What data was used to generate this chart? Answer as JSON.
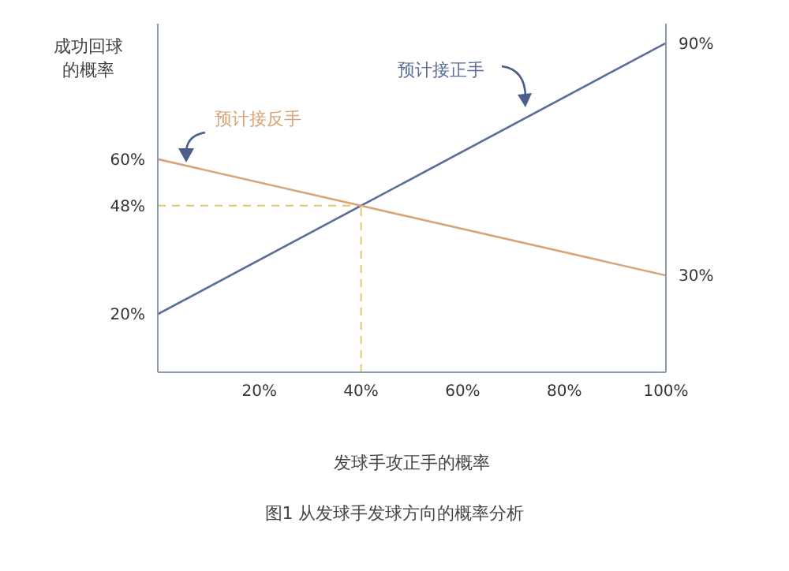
{
  "chart_data": {
    "type": "line",
    "ylabel": "成功回球的概率",
    "xlabel": "发球手攻正手的概率",
    "annotations": [
      "图1 从发球手发球方向的概率分析"
    ],
    "x": [
      0,
      100
    ],
    "series": [
      {
        "name": "预计接正手",
        "color": "#5b6d99",
        "values": [
          20,
          90
        ]
      },
      {
        "name": "预计接反手",
        "color": "#d9a577",
        "values": [
          60,
          30
        ]
      }
    ],
    "xlim": [
      0,
      100
    ],
    "xticks": [
      {
        "value": 20,
        "label": "20%"
      },
      {
        "value": 40,
        "label": "40%"
      },
      {
        "value": 60,
        "label": "60%"
      },
      {
        "value": 80,
        "label": "80%"
      },
      {
        "value": 100,
        "label": "100%"
      }
    ],
    "ylim": [
      5,
      95
    ],
    "yticks": [
      {
        "value": 20,
        "label": "20%"
      },
      {
        "value": 48,
        "label": "48%"
      },
      {
        "value": 60,
        "label": "60%"
      }
    ],
    "y2lim": [
      5,
      95
    ],
    "y2ticks": [
      {
        "value": 30,
        "label": "30%"
      },
      {
        "value": 90,
        "label": "90%"
      }
    ],
    "ref_lines": [
      {
        "axis": "y",
        "value": 48,
        "color": "#e6c96a",
        "line_style": "dashed"
      },
      {
        "axis": "x",
        "value": 40,
        "color": "#e6c96a",
        "line_style": "dashed"
      }
    ],
    "marker": "none",
    "line_style": "solid"
  }
}
